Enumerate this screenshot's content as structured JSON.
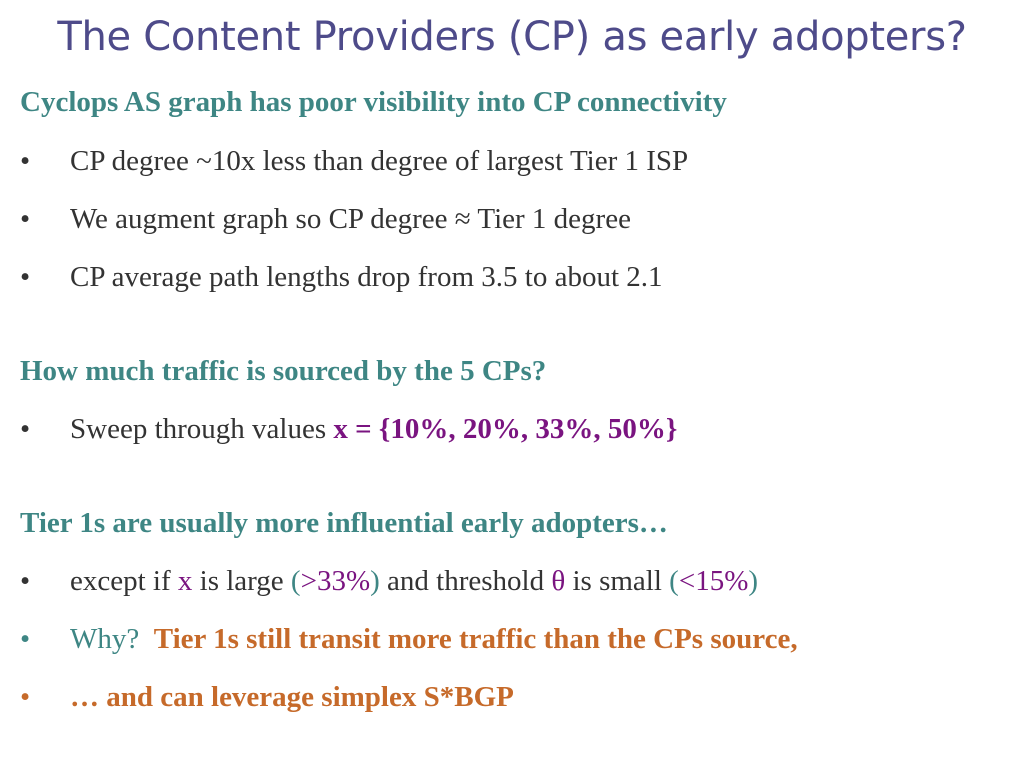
{
  "slide": {
    "title": "The Content Providers (CP) as early adopters?",
    "bullet_glyph": "•",
    "section1": {
      "heading": "Cyclops AS graph has poor visibility into CP connectivity",
      "bullets": [
        "CP degree ~10x less than degree of largest Tier 1 ISP",
        "We augment graph so CP degree ≈ Tier 1 degree",
        "CP average path lengths drop from 3.5 to about 2.1"
      ]
    },
    "section2": {
      "heading": "How much traffic is sourced by the 5 CPs?",
      "bullet_prefix": "Sweep through values ",
      "bullet_values": "x = {10%, 20%, 33%, 50%}"
    },
    "section3": {
      "heading": "Tier 1s are usually more influential early adopters…",
      "bullet1": {
        "part1": "except if ",
        "x": "x",
        "part2": " is large ",
        "paren_open": "(",
        "gt33": ">33%",
        "paren_close": ")",
        "part3": " and threshold ",
        "theta": "θ",
        "part4": " is small ",
        "paren_open2": "(",
        "lt15": "<15%",
        "paren_close2": ")"
      },
      "bullet2": {
        "why": "Why?  ",
        "reason": "Tier 1s still transit more traffic than the CPs source,"
      },
      "bullet3": "… and can leverage simplex S*BGP"
    },
    "colors": {
      "title": "#4e4b8a",
      "heading": "#3e8684",
      "body": "#333333",
      "purple": "#7a1480",
      "orange": "#c66a2a"
    }
  }
}
